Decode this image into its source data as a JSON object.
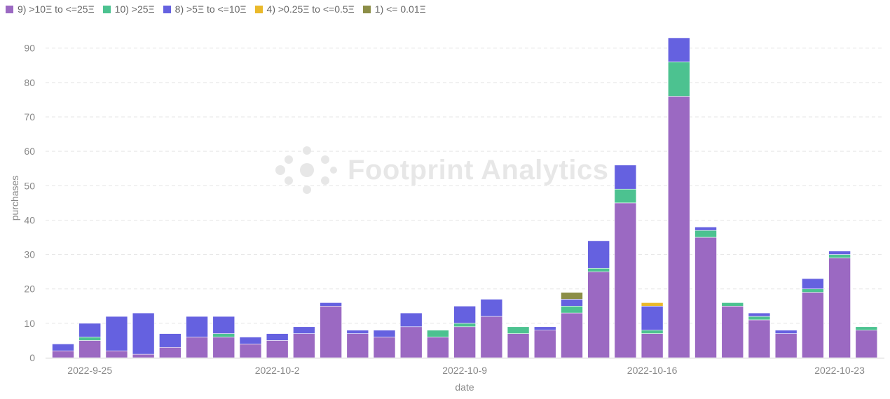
{
  "watermark": "Footprint Analytics",
  "chart_data": {
    "type": "bar",
    "stacked": true,
    "xlabel": "date",
    "ylabel": "purchases",
    "ylim": [
      0,
      93
    ],
    "yticks": [
      0,
      10,
      20,
      30,
      40,
      50,
      60,
      70,
      80,
      90
    ],
    "grid": "horizontal dashed",
    "legend_position": "top-left",
    "x_tick_labels": [
      {
        "index": 1,
        "label": "2022-9-25"
      },
      {
        "index": 8,
        "label": "2022-10-2"
      },
      {
        "index": 15,
        "label": "2022-10-9"
      },
      {
        "index": 22,
        "label": "2022-10-16"
      },
      {
        "index": 29,
        "label": "2022-10-23"
      }
    ],
    "categories": [
      "2022-09-24",
      "2022-09-25",
      "2022-09-26",
      "2022-09-27",
      "2022-09-28",
      "2022-09-29",
      "2022-09-30",
      "2022-10-01",
      "2022-10-02",
      "2022-10-03",
      "2022-10-04",
      "2022-10-05",
      "2022-10-06",
      "2022-10-07",
      "2022-10-08",
      "2022-10-09",
      "2022-10-10",
      "2022-10-11",
      "2022-10-12",
      "2022-10-13",
      "2022-10-14",
      "2022-10-15",
      "2022-10-16",
      "2022-10-17",
      "2022-10-18",
      "2022-10-19",
      "2022-10-20",
      "2022-10-21",
      "2022-10-22",
      "2022-10-23",
      "2022-10-24",
      "2022-10-25"
    ],
    "series": [
      {
        "name": "9) >10Ξ to <=25Ξ",
        "color": "#9b69c2",
        "values": [
          2,
          5,
          2,
          1,
          3,
          6,
          6,
          4,
          5,
          7,
          15,
          7,
          6,
          9,
          6,
          9,
          12,
          7,
          8,
          13,
          25,
          45,
          7,
          76,
          35,
          15,
          11,
          7,
          19,
          29,
          8,
          0
        ]
      },
      {
        "name": "10) >25Ξ",
        "color": "#4cc290",
        "values": [
          0,
          1,
          0,
          0,
          0,
          0,
          1,
          0,
          0,
          0,
          0,
          0,
          0,
          0,
          2,
          1,
          0,
          2,
          0,
          2,
          1,
          4,
          1,
          10,
          2,
          1,
          1,
          0,
          1,
          1,
          1,
          0
        ]
      },
      {
        "name": "8) >5Ξ to <=10Ξ",
        "color": "#6561e0",
        "values": [
          2,
          4,
          10,
          12,
          4,
          6,
          5,
          2,
          2,
          2,
          1,
          1,
          2,
          4,
          0,
          5,
          5,
          0,
          1,
          2,
          8,
          7,
          7,
          7,
          1,
          0,
          1,
          1,
          3,
          1,
          0,
          0
        ]
      },
      {
        "name": "4) >0.25Ξ to <=0.5Ξ",
        "color": "#eab92a",
        "values": [
          0,
          0,
          0,
          0,
          0,
          0,
          0,
          0,
          0,
          0,
          0,
          0,
          0,
          0,
          0,
          0,
          0,
          0,
          0,
          0,
          0,
          0,
          1,
          0,
          0,
          0,
          0,
          0,
          0,
          0,
          0,
          0
        ]
      },
      {
        "name": "1) <= 0.01Ξ",
        "color": "#8c8e47",
        "values": [
          0,
          0,
          0,
          0,
          0,
          0,
          0,
          0,
          0,
          0,
          0,
          0,
          0,
          0,
          0,
          0,
          0,
          0,
          0,
          2,
          0,
          0,
          0,
          0,
          0,
          0,
          0,
          0,
          0,
          0,
          0,
          0
        ]
      }
    ]
  }
}
